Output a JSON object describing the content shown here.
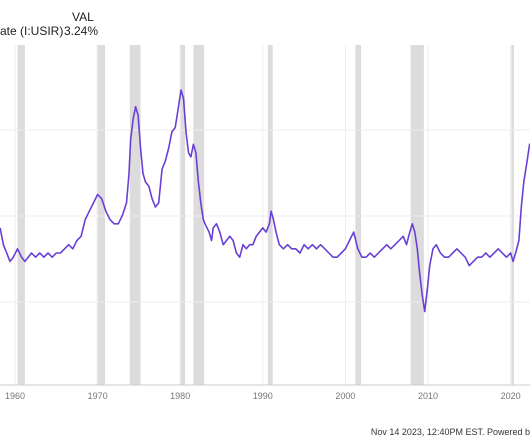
{
  "legend": {
    "series_label": "ate (I:USIR)",
    "value_header": "VAL",
    "value": "3.24%"
  },
  "footer": "Nov 14 2023, 12:40PM EST. Powered b",
  "colors": {
    "line": "#6a3fd6",
    "recession": "#dcdcdc",
    "grid": "#ededed"
  },
  "chart_data": {
    "type": "line",
    "title": "",
    "xlabel": "",
    "ylabel": "",
    "x_ticks": [
      "1960",
      "1970",
      "1980",
      "1990",
      "2000",
      "2010",
      "2020"
    ],
    "x_range": [
      1958.2,
      2023.9
    ],
    "y_range": [
      -0.8,
      5.0
    ],
    "grid": "horizontal and vertical gridlines, no y tick labels visible",
    "shaded_periods": [
      [
        1960.3,
        1961.2
      ],
      [
        1969.9,
        1970.9
      ],
      [
        1973.9,
        1975.2
      ],
      [
        1980.0,
        1980.6
      ],
      [
        1981.6,
        1982.9
      ],
      [
        1990.6,
        1991.2
      ],
      [
        2001.2,
        2001.9
      ],
      [
        2007.9,
        2009.5
      ],
      [
        2020.1,
        2020.4
      ]
    ],
    "series": [
      {
        "values": [
          [
            1958.2,
            1.7
          ],
          [
            1958.6,
            1.3
          ],
          [
            1959.0,
            1.1
          ],
          [
            1959.4,
            0.9
          ],
          [
            1959.8,
            1.0
          ],
          [
            1960.3,
            1.2
          ],
          [
            1960.8,
            1.0
          ],
          [
            1961.2,
            0.9
          ],
          [
            1961.6,
            1.0
          ],
          [
            1962.0,
            1.1
          ],
          [
            1962.5,
            1.0
          ],
          [
            1963.0,
            1.1
          ],
          [
            1963.5,
            1.0
          ],
          [
            1964.0,
            1.1
          ],
          [
            1964.5,
            1.0
          ],
          [
            1965.0,
            1.1
          ],
          [
            1965.5,
            1.1
          ],
          [
            1966.0,
            1.2
          ],
          [
            1966.5,
            1.3
          ],
          [
            1967.0,
            1.2
          ],
          [
            1967.5,
            1.4
          ],
          [
            1968.0,
            1.5
          ],
          [
            1968.5,
            1.9
          ],
          [
            1969.0,
            2.1
          ],
          [
            1969.5,
            2.3
          ],
          [
            1970.0,
            2.5
          ],
          [
            1970.5,
            2.4
          ],
          [
            1971.0,
            2.1
          ],
          [
            1971.5,
            1.9
          ],
          [
            1972.0,
            1.8
          ],
          [
            1972.5,
            1.8
          ],
          [
            1973.0,
            2.0
          ],
          [
            1973.5,
            2.3
          ],
          [
            1973.8,
            3.0
          ],
          [
            1974.0,
            3.8
          ],
          [
            1974.3,
            4.3
          ],
          [
            1974.6,
            4.6
          ],
          [
            1974.9,
            4.4
          ],
          [
            1975.2,
            3.6
          ],
          [
            1975.5,
            3.0
          ],
          [
            1975.8,
            2.8
          ],
          [
            1976.2,
            2.7
          ],
          [
            1976.6,
            2.4
          ],
          [
            1977.0,
            2.2
          ],
          [
            1977.4,
            2.3
          ],
          [
            1977.8,
            3.1
          ],
          [
            1978.2,
            3.3
          ],
          [
            1978.6,
            3.6
          ],
          [
            1979.0,
            4.0
          ],
          [
            1979.4,
            4.1
          ],
          [
            1979.8,
            4.6
          ],
          [
            1980.1,
            5.0
          ],
          [
            1980.4,
            4.8
          ],
          [
            1980.7,
            4.0
          ],
          [
            1981.0,
            3.5
          ],
          [
            1981.3,
            3.4
          ],
          [
            1981.6,
            3.7
          ],
          [
            1981.9,
            3.5
          ],
          [
            1982.2,
            2.8
          ],
          [
            1982.5,
            2.3
          ],
          [
            1982.8,
            1.9
          ],
          [
            1983.0,
            1.8
          ],
          [
            1983.5,
            1.6
          ],
          [
            1983.8,
            1.4
          ],
          [
            1984.0,
            1.7
          ],
          [
            1984.4,
            1.8
          ],
          [
            1984.8,
            1.6
          ],
          [
            1985.2,
            1.3
          ],
          [
            1985.6,
            1.4
          ],
          [
            1986.0,
            1.5
          ],
          [
            1986.4,
            1.4
          ],
          [
            1986.8,
            1.1
          ],
          [
            1987.2,
            1.0
          ],
          [
            1987.6,
            1.3
          ],
          [
            1988.0,
            1.2
          ],
          [
            1988.4,
            1.3
          ],
          [
            1988.8,
            1.3
          ],
          [
            1989.2,
            1.5
          ],
          [
            1989.6,
            1.6
          ],
          [
            1990.0,
            1.7
          ],
          [
            1990.4,
            1.6
          ],
          [
            1990.8,
            1.8
          ],
          [
            1991.0,
            2.1
          ],
          [
            1991.3,
            1.9
          ],
          [
            1991.6,
            1.6
          ],
          [
            1992.0,
            1.3
          ],
          [
            1992.5,
            1.2
          ],
          [
            1993.0,
            1.3
          ],
          [
            1993.5,
            1.2
          ],
          [
            1994.0,
            1.2
          ],
          [
            1994.5,
            1.1
          ],
          [
            1995.0,
            1.3
          ],
          [
            1995.5,
            1.2
          ],
          [
            1996.0,
            1.3
          ],
          [
            1996.5,
            1.2
          ],
          [
            1997.0,
            1.3
          ],
          [
            1997.5,
            1.2
          ],
          [
            1998.0,
            1.1
          ],
          [
            1998.5,
            1.0
          ],
          [
            1999.0,
            1.0
          ],
          [
            1999.5,
            1.1
          ],
          [
            2000.0,
            1.2
          ],
          [
            2000.5,
            1.4
          ],
          [
            2001.0,
            1.6
          ],
          [
            2001.5,
            1.2
          ],
          [
            2002.0,
            1.0
          ],
          [
            2002.5,
            1.0
          ],
          [
            2003.0,
            1.1
          ],
          [
            2003.5,
            1.0
          ],
          [
            2004.0,
            1.1
          ],
          [
            2004.5,
            1.2
          ],
          [
            2005.0,
            1.3
          ],
          [
            2005.5,
            1.2
          ],
          [
            2006.0,
            1.3
          ],
          [
            2006.5,
            1.4
          ],
          [
            2007.0,
            1.5
          ],
          [
            2007.4,
            1.3
          ],
          [
            2007.8,
            1.6
          ],
          [
            2008.1,
            1.8
          ],
          [
            2008.4,
            1.6
          ],
          [
            2008.7,
            1.2
          ],
          [
            2009.0,
            0.6
          ],
          [
            2009.3,
            0.1
          ],
          [
            2009.6,
            -0.3
          ],
          [
            2009.9,
            0.2
          ],
          [
            2010.2,
            0.8
          ],
          [
            2010.6,
            1.2
          ],
          [
            2011.0,
            1.3
          ],
          [
            2011.5,
            1.1
          ],
          [
            2012.0,
            1.0
          ],
          [
            2012.5,
            1.0
          ],
          [
            2013.0,
            1.1
          ],
          [
            2013.5,
            1.2
          ],
          [
            2014.0,
            1.1
          ],
          [
            2014.5,
            1.0
          ],
          [
            2015.0,
            0.8
          ],
          [
            2015.5,
            0.9
          ],
          [
            2016.0,
            1.0
          ],
          [
            2016.5,
            1.0
          ],
          [
            2017.0,
            1.1
          ],
          [
            2017.5,
            1.0
          ],
          [
            2018.0,
            1.1
          ],
          [
            2018.5,
            1.2
          ],
          [
            2019.0,
            1.1
          ],
          [
            2019.5,
            1.0
          ],
          [
            2020.0,
            1.1
          ],
          [
            2020.3,
            0.9
          ],
          [
            2020.6,
            1.1
          ],
          [
            2021.0,
            1.4
          ],
          [
            2021.3,
            2.2
          ],
          [
            2021.6,
            2.8
          ],
          [
            2022.0,
            3.3
          ],
          [
            2022.3,
            3.7
          ],
          [
            2022.6,
            3.6
          ],
          [
            2023.0,
            3.5
          ],
          [
            2023.5,
            3.3
          ],
          [
            2023.9,
            3.24
          ]
        ]
      }
    ]
  }
}
